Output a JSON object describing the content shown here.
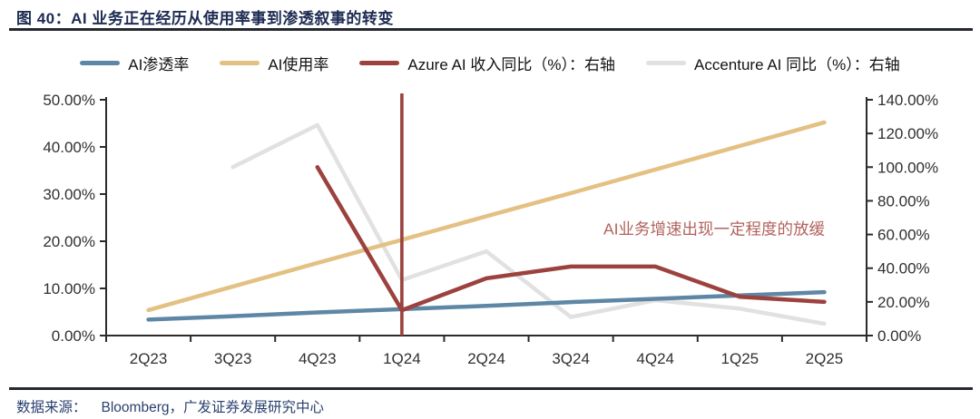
{
  "header": {
    "title": "图 40：AI 业务正在经历从使用率事到渗透叙事的转变"
  },
  "footer": {
    "source_label": "数据来源：",
    "source_text": "Bloomberg，广发证券发展研究中心"
  },
  "colors": {
    "title_navy": "#1c2b52",
    "rule_dark": "#24282f",
    "axis": "#2b2b2b",
    "tick_text": "#303030",
    "source_navy": "#2b4170"
  },
  "chart_data": {
    "type": "line",
    "title": "",
    "legend_position": "top",
    "grid": false,
    "categories": [
      "2Q23",
      "3Q23",
      "4Q23",
      "1Q24",
      "2Q24",
      "3Q24",
      "4Q24",
      "1Q25",
      "2Q25"
    ],
    "left_axis": {
      "min": 0,
      "max": 50,
      "step": 10,
      "ticks": [
        "0.00%",
        "10.00%",
        "20.00%",
        "30.00%",
        "40.00%",
        "50.00%"
      ]
    },
    "right_axis": {
      "min": 0,
      "max": 140,
      "step": 20,
      "ticks": [
        "0.00%",
        "20.00%",
        "40.00%",
        "60.00%",
        "80.00%",
        "100.00%",
        "120.00%",
        "140.00%"
      ]
    },
    "series": [
      {
        "name": "AI渗透率",
        "axis": "left",
        "color": "#5e87a5",
        "values": [
          3.4,
          4.1,
          4.9,
          5.6,
          6.3,
          7.1,
          7.8,
          8.5,
          9.2
        ]
      },
      {
        "name": "AI使用率",
        "axis": "left",
        "color": "#e3c183",
        "values": [
          5.4,
          10.4,
          15.4,
          20.3,
          25.3,
          30.2,
          35.2,
          40.2,
          45.2
        ]
      },
      {
        "name": "Azure AI 收入同比（%）：右轴",
        "axis": "right",
        "color": "#9c423e",
        "values": [
          null,
          null,
          100,
          15,
          34,
          41,
          41,
          23,
          20
        ]
      },
      {
        "name": "Accenture AI 同比（%）：右轴",
        "axis": "right",
        "color": "#e1e1e1",
        "values": [
          null,
          100,
          125,
          33,
          50,
          11,
          21,
          16,
          7
        ]
      }
    ],
    "annotations": [
      {
        "type": "vline",
        "category": "1Q24",
        "axis": "right",
        "from": 0,
        "to": 143.8,
        "color": "#9c423e"
      },
      {
        "type": "text",
        "text": "AI业务增速出现一定程度的放缓",
        "color": "#b2625c"
      }
    ]
  }
}
